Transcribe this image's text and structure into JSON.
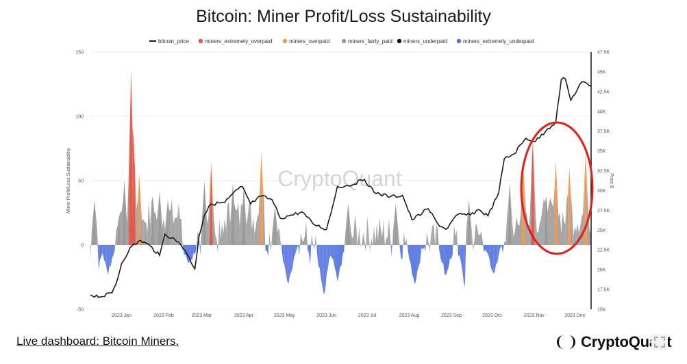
{
  "title": "Bitcoin: Miner Profit/Loss Sustainability",
  "footer": {
    "link_text": "Live dashboard: Bitcoin Miners."
  },
  "brand": {
    "name": "CryptoQuant",
    "icon": "cryptoquant-logo-icon"
  },
  "watermark": "CryptoQuant",
  "colors": {
    "bitcoin_price": "#1a1a1a",
    "miners_extremely_overpaid": "#e05a4e",
    "miners_overpaid": "#ef9a55",
    "miners_fairly_paid": "#9a9a9a",
    "miners_underpaid": "#111111",
    "miners_extremely_underpaid": "#4f6fde",
    "highlight_ellipse": "#e0201a"
  },
  "chart_data": {
    "type": "area",
    "title": "Bitcoin: Miner Profit/Loss Sustainability",
    "ylabel": "Miner Profit/Loss Sustainability",
    "y2label": "Price $",
    "ylim": [
      -50,
      150
    ],
    "yticks": [
      -50,
      0,
      50,
      100,
      150
    ],
    "y2lim": [
      15000,
      47500
    ],
    "y2ticks": [
      15000,
      17500,
      20000,
      22500,
      25000,
      27500,
      30000,
      32500,
      35000,
      37500,
      40000,
      42500,
      45000,
      47500
    ],
    "y2ticklabels": [
      "15K",
      "17.5K",
      "20K",
      "22.5K",
      "25K",
      "27.5K",
      "30K",
      "32.5K",
      "35K",
      "37.5K",
      "40K",
      "42.5K",
      "45K",
      "47.5K"
    ],
    "xticks": [
      "2023 Jan",
      "2023 Feb",
      "2023 Mar",
      "2023 Apr",
      "2023 May",
      "2023 Jun",
      "2023 Jul",
      "2023 Aug",
      "2023 Sep",
      "2023 Oct",
      "2023 Nov",
      "2023 Dec"
    ],
    "x_range": [
      "2022-12-23",
      "2023-12-27"
    ],
    "grid": "horizontal",
    "legend": "top",
    "legend_entries": [
      "bitcoin_price",
      "miners_extremely_overpaid",
      "miners_overpaid",
      "miners_fairly_paid",
      "miners_underpaid",
      "miners_extremely_underpaid"
    ],
    "annotation": "red ellipse highlighting Nov–Dec 2023 overpaid spikes",
    "bitcoin_price": [
      [
        "2022-12-23",
        16800
      ],
      [
        "2023-01-01",
        16600
      ],
      [
        "2023-01-08",
        17100
      ],
      [
        "2023-01-12",
        18800
      ],
      [
        "2023-01-15",
        20800
      ],
      [
        "2023-01-21",
        22700
      ],
      [
        "2023-01-29",
        23700
      ],
      [
        "2023-02-05",
        23000
      ],
      [
        "2023-02-12",
        21800
      ],
      [
        "2023-02-16",
        24500
      ],
      [
        "2023-02-26",
        23500
      ],
      [
        "2023-03-03",
        22400
      ],
      [
        "2023-03-10",
        20100
      ],
      [
        "2023-03-13",
        24200
      ],
      [
        "2023-03-17",
        26900
      ],
      [
        "2023-03-22",
        28300
      ],
      [
        "2023-04-01",
        28500
      ],
      [
        "2023-04-11",
        30200
      ],
      [
        "2023-04-14",
        30500
      ],
      [
        "2023-04-20",
        28300
      ],
      [
        "2023-04-28",
        29300
      ],
      [
        "2023-05-06",
        28800
      ],
      [
        "2023-05-12",
        26500
      ],
      [
        "2023-05-20",
        26900
      ],
      [
        "2023-05-28",
        27300
      ],
      [
        "2023-06-05",
        25800
      ],
      [
        "2023-06-15",
        25100
      ],
      [
        "2023-06-20",
        28300
      ],
      [
        "2023-06-23",
        30500
      ],
      [
        "2023-07-01",
        30600
      ],
      [
        "2023-07-13",
        31400
      ],
      [
        "2023-07-20",
        29800
      ],
      [
        "2023-08-01",
        29200
      ],
      [
        "2023-08-10",
        29400
      ],
      [
        "2023-08-17",
        26300
      ],
      [
        "2023-08-29",
        27700
      ],
      [
        "2023-09-05",
        25800
      ],
      [
        "2023-09-11",
        25100
      ],
      [
        "2023-09-20",
        27000
      ],
      [
        "2023-09-29",
        26900
      ],
      [
        "2023-10-05",
        27600
      ],
      [
        "2023-10-12",
        26800
      ],
      [
        "2023-10-20",
        29800
      ],
      [
        "2023-10-24",
        34000
      ],
      [
        "2023-10-31",
        34600
      ],
      [
        "2023-11-09",
        36600
      ],
      [
        "2023-11-16",
        36200
      ],
      [
        "2023-11-25",
        37800
      ],
      [
        "2023-12-01",
        38700
      ],
      [
        "2023-12-05",
        44000
      ],
      [
        "2023-12-08",
        44100
      ],
      [
        "2023-12-12",
        41400
      ],
      [
        "2023-12-20",
        43700
      ],
      [
        "2023-12-27",
        43200
      ]
    ],
    "sustainability_peaks": [
      {
        "date": "2022-12-26",
        "value": 35,
        "category": "miners_fairly_paid"
      },
      {
        "date": "2023-01-13",
        "value": 22,
        "category": "miners_fairly_paid"
      },
      {
        "date": "2023-01-17",
        "value": 50,
        "category": "miners_fairly_paid"
      },
      {
        "date": "2023-01-22",
        "value": 136,
        "category": "miners_extremely_overpaid"
      },
      {
        "date": "2023-01-24",
        "value": 82,
        "category": "miners_extremely_overpaid"
      },
      {
        "date": "2023-01-28",
        "value": 55,
        "category": "miners_overpaid"
      },
      {
        "date": "2023-02-07",
        "value": 38,
        "category": "miners_fairly_paid"
      },
      {
        "date": "2023-02-12",
        "value": 42,
        "category": "miners_fairly_paid"
      },
      {
        "date": "2023-02-18",
        "value": 35,
        "category": "miners_fairly_paid"
      },
      {
        "date": "2023-03-17",
        "value": 50,
        "category": "miners_fairly_paid"
      },
      {
        "date": "2023-03-22",
        "value": 64,
        "category": "miners_extremely_overpaid"
      },
      {
        "date": "2023-04-07",
        "value": 48,
        "category": "miners_fairly_paid"
      },
      {
        "date": "2023-04-15",
        "value": 45,
        "category": "miners_fairly_paid"
      },
      {
        "date": "2023-04-28",
        "value": 72,
        "category": "miners_overpaid"
      },
      {
        "date": "2023-05-08",
        "value": 30,
        "category": "miners_fairly_paid"
      },
      {
        "date": "2023-07-01",
        "value": 32,
        "category": "miners_fairly_paid"
      },
      {
        "date": "2023-08-05",
        "value": 32,
        "category": "miners_fairly_paid"
      },
      {
        "date": "2023-09-28",
        "value": 35,
        "category": "miners_fairly_paid"
      },
      {
        "date": "2023-10-28",
        "value": 48,
        "category": "miners_fairly_paid"
      },
      {
        "date": "2023-11-07",
        "value": 65,
        "category": "miners_overpaid"
      },
      {
        "date": "2023-11-14",
        "value": 82,
        "category": "miners_extremely_overpaid"
      },
      {
        "date": "2023-11-24",
        "value": 38,
        "category": "miners_fairly_paid"
      },
      {
        "date": "2023-12-01",
        "value": 65,
        "category": "miners_overpaid"
      },
      {
        "date": "2023-12-11",
        "value": 60,
        "category": "miners_overpaid"
      },
      {
        "date": "2023-12-23",
        "value": 72,
        "category": "miners_overpaid"
      }
    ],
    "sustainability_troughs": [
      {
        "date": "2022-12-27",
        "value": -27,
        "category": "miners_extremely_underpaid"
      },
      {
        "date": "2023-01-05",
        "value": -22,
        "category": "miners_extremely_underpaid"
      },
      {
        "date": "2023-03-06",
        "value": -15,
        "category": "miners_extremely_underpaid"
      },
      {
        "date": "2023-05-18",
        "value": -30,
        "category": "miners_extremely_underpaid"
      },
      {
        "date": "2023-06-13",
        "value": -40,
        "category": "miners_extremely_underpaid"
      },
      {
        "date": "2023-06-23",
        "value": -28,
        "category": "miners_extremely_underpaid"
      },
      {
        "date": "2023-08-19",
        "value": -30,
        "category": "miners_extremely_underpaid"
      },
      {
        "date": "2023-09-11",
        "value": -25,
        "category": "miners_extremely_underpaid"
      },
      {
        "date": "2023-09-25",
        "value": -30,
        "category": "miners_extremely_underpaid"
      },
      {
        "date": "2023-10-16",
        "value": -22,
        "category": "miners_extremely_underpaid"
      }
    ]
  }
}
